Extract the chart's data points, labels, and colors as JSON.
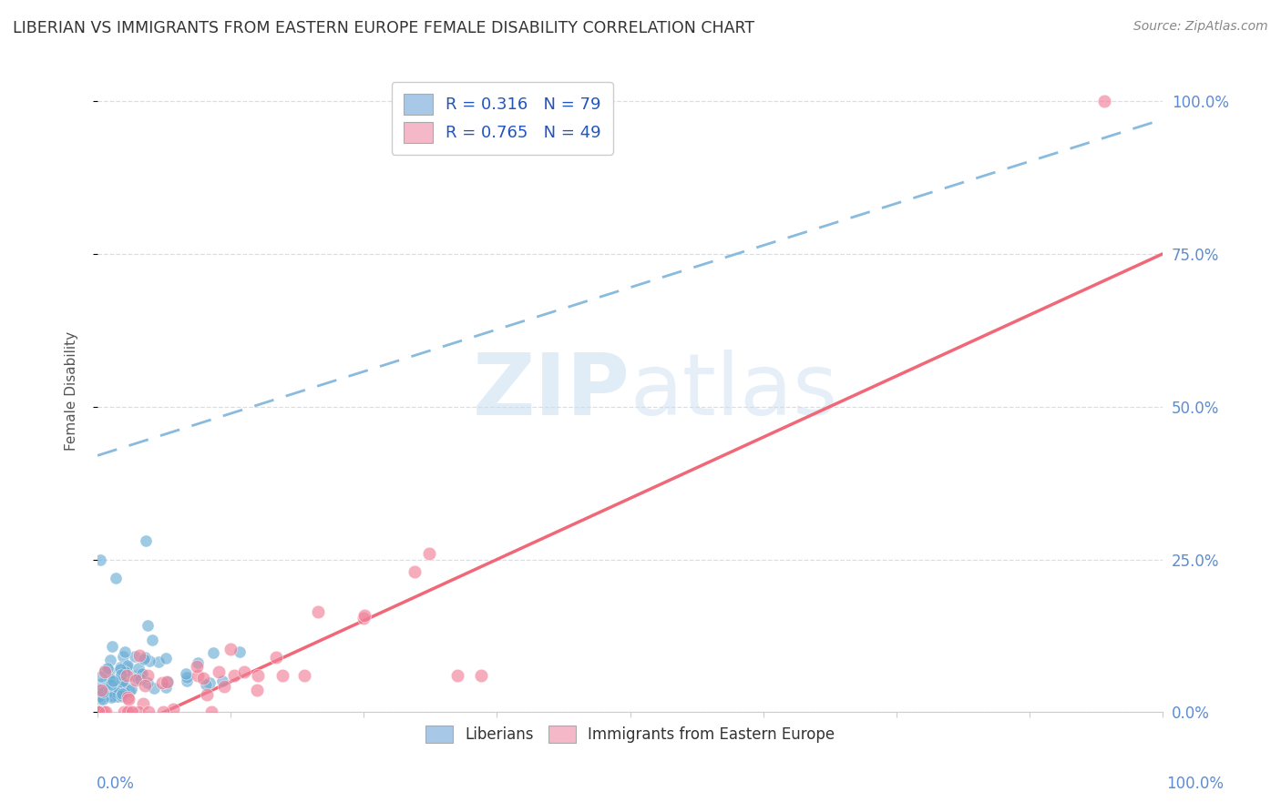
{
  "title": "LIBERIAN VS IMMIGRANTS FROM EASTERN EUROPE FEMALE DISABILITY CORRELATION CHART",
  "source": "Source: ZipAtlas.com",
  "ylabel": "Female Disability",
  "ylabel_right_ticks": [
    "0.0%",
    "25.0%",
    "50.0%",
    "75.0%",
    "100.0%"
  ],
  "legend_label1": "R = 0.316   N = 79",
  "legend_label2": "R = 0.765   N = 49",
  "legend_color1": "#a8c8e8",
  "legend_color2": "#f4b8c8",
  "blue_color": "#6aaed6",
  "pink_color": "#f08098",
  "line1_color": "#88bbdd",
  "line2_color": "#f06878",
  "grid_color": "#ccddee",
  "watermark_color": "#c8ddf0",
  "background": "#ffffff",
  "line1_slope": 0.55,
  "line1_intercept": 0.42,
  "line2_slope": 0.8,
  "line2_intercept": -0.05
}
